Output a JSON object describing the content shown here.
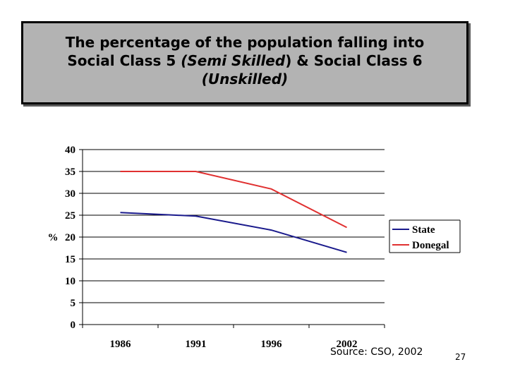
{
  "title": {
    "line1": "The percentage of the population falling into",
    "line2_a": "Social Class 5 ",
    "line2_b": "(Semi Skilled",
    "line2_c": ") & Social Class 6",
    "line3": "(Unskilled)"
  },
  "chart_data": {
    "type": "line",
    "categories": [
      "1986",
      "1991",
      "1996",
      "2002"
    ],
    "series": [
      {
        "name": "State",
        "values": [
          25.6,
          24.8,
          21.6,
          16.5
        ],
        "color": "#1a1a8c"
      },
      {
        "name": "Donegal",
        "values": [
          35.0,
          35.0,
          31.0,
          22.2
        ],
        "color": "#e03030"
      }
    ],
    "ylabel": "%",
    "ylim": [
      0,
      40
    ],
    "yticks": [
      "0",
      "5",
      "10",
      "15",
      "20",
      "25",
      "30",
      "35",
      "40"
    ],
    "grid": true,
    "legend": "right"
  },
  "source": "Source: CSO, 2002",
  "page_number": "27"
}
